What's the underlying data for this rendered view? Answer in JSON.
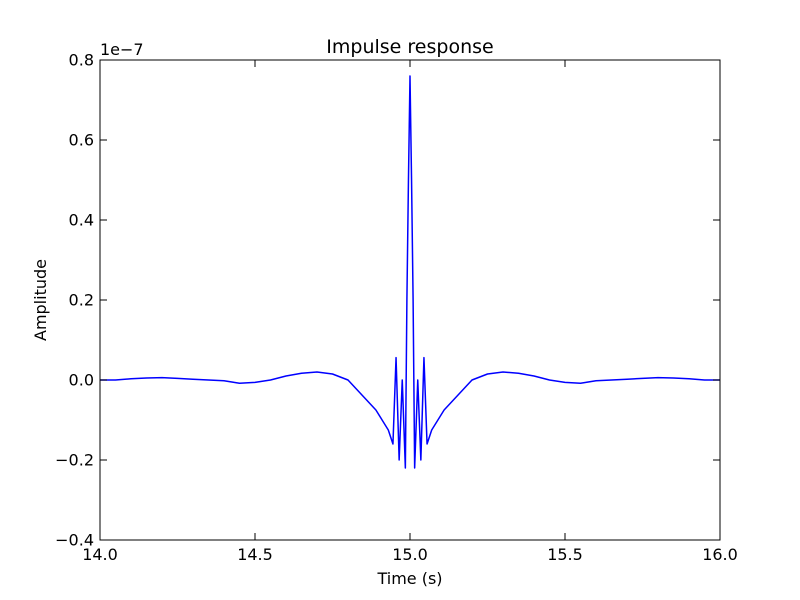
{
  "chart_data": {
    "type": "line",
    "title": "Impulse response",
    "xlabel": "Time (s)",
    "ylabel": "Amplitude",
    "y_offset_label": "1e−7",
    "xlim": [
      14.0,
      16.0
    ],
    "ylim": [
      -0.4,
      0.8
    ],
    "y_scale_factor": 1e-07,
    "grid": false,
    "x_ticks": [
      14.0,
      14.5,
      15.0,
      15.5,
      16.0
    ],
    "x_tick_labels": [
      "14.0",
      "14.5",
      "15.0",
      "15.5",
      "16.0"
    ],
    "y_ticks": [
      -0.4,
      -0.2,
      0.0,
      0.2,
      0.4,
      0.6,
      0.8
    ],
    "y_tick_labels": [
      "−0.4",
      "−0.2",
      "0.0",
      "0.2",
      "0.4",
      "0.6",
      "0.8"
    ],
    "series": [
      {
        "color": "#0000ff",
        "x": [
          14.0,
          14.05,
          14.1,
          14.15,
          14.2,
          14.25,
          14.3,
          14.35,
          14.4,
          14.45,
          14.5,
          14.55,
          14.6,
          14.65,
          14.7,
          14.75,
          14.8,
          14.83,
          14.86,
          14.89,
          14.91,
          14.93,
          14.945,
          14.955,
          14.965,
          14.975,
          14.985,
          14.99,
          14.995,
          15.0,
          15.005,
          15.01,
          15.015,
          15.025,
          15.035,
          15.045,
          15.055,
          15.07,
          15.09,
          15.11,
          15.14,
          15.17,
          15.2,
          15.25,
          15.3,
          15.35,
          15.4,
          15.45,
          15.5,
          15.55,
          15.6,
          15.65,
          15.7,
          15.75,
          15.8,
          15.85,
          15.9,
          15.95,
          16.0
        ],
        "y": [
          0.0,
          0.0,
          0.003,
          0.005,
          0.006,
          0.004,
          0.002,
          0.0,
          -0.002,
          -0.008,
          -0.006,
          0.0,
          0.01,
          0.017,
          0.02,
          0.015,
          0.0,
          -0.025,
          -0.05,
          -0.075,
          -0.1,
          -0.125,
          -0.16,
          0.056,
          -0.2,
          0.0,
          -0.22,
          0.2,
          0.5,
          0.76,
          0.5,
          0.2,
          -0.22,
          0.0,
          -0.2,
          0.056,
          -0.16,
          -0.125,
          -0.1,
          -0.075,
          -0.05,
          -0.025,
          0.0,
          0.015,
          0.02,
          0.017,
          0.01,
          0.0,
          -0.006,
          -0.008,
          -0.002,
          0.0,
          0.002,
          0.004,
          0.006,
          0.005,
          0.003,
          0.0,
          0.0
        ]
      }
    ]
  }
}
